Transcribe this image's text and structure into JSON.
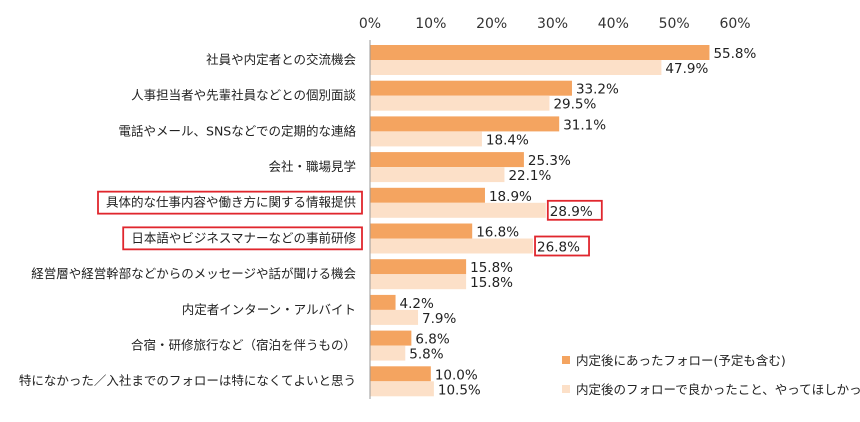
{
  "chart_data": {
    "type": "bar",
    "orientation": "horizontal",
    "categories": [
      "社員や内定者との交流機会",
      "人事担当者や先輩社員などとの個別面談",
      "電話やメール、SNSなどでの定期的な連絡",
      "会社・職場見学",
      "具体的な仕事内容や働き方に関する情報提供",
      "日本語やビジネスマナーなどの事前研修",
      "経営層や経営幹部などからのメッセージや話が聞ける機会",
      "内定者インターン・アルバイト",
      "合宿・研修旅行など（宿泊を伴うもの）",
      "特になかった／入社までのフォローは特になくてよいと思う"
    ],
    "series": [
      {
        "name": "内定後にあったフォロー(予定も含む)",
        "color": "#f4a460",
        "values": [
          55.8,
          33.2,
          31.1,
          25.3,
          18.9,
          16.8,
          15.8,
          4.2,
          6.8,
          10.0
        ],
        "labels": [
          "55.8%",
          "33.2%",
          "31.1%",
          "25.3%",
          "18.9%",
          "16.8%",
          "15.8%",
          "4.2%",
          "6.8%",
          "10.0%"
        ]
      },
      {
        "name": "内定後のフォローで良かったこと、やってほしかったこと",
        "color": "#fce0c8",
        "values": [
          47.9,
          29.5,
          18.4,
          22.1,
          28.9,
          26.8,
          15.8,
          7.9,
          5.8,
          10.5
        ],
        "labels": [
          "47.9%",
          "29.5%",
          "18.4%",
          "22.1%",
          "28.9%",
          "26.8%",
          "15.8%",
          "7.9%",
          "5.8%",
          "10.5%"
        ]
      }
    ],
    "xlim": [
      0,
      60
    ],
    "xticks": [
      "0%",
      "10%",
      "20%",
      "30%",
      "40%",
      "50%",
      "60%"
    ],
    "grid": false,
    "legend_position": "bottom-right",
    "highlight_color": "#e0262d",
    "highlighted_categories": [
      4,
      5
    ],
    "highlighted_labels": [
      {
        "category": 4,
        "series": 1
      },
      {
        "category": 5,
        "series": 1
      }
    ]
  }
}
